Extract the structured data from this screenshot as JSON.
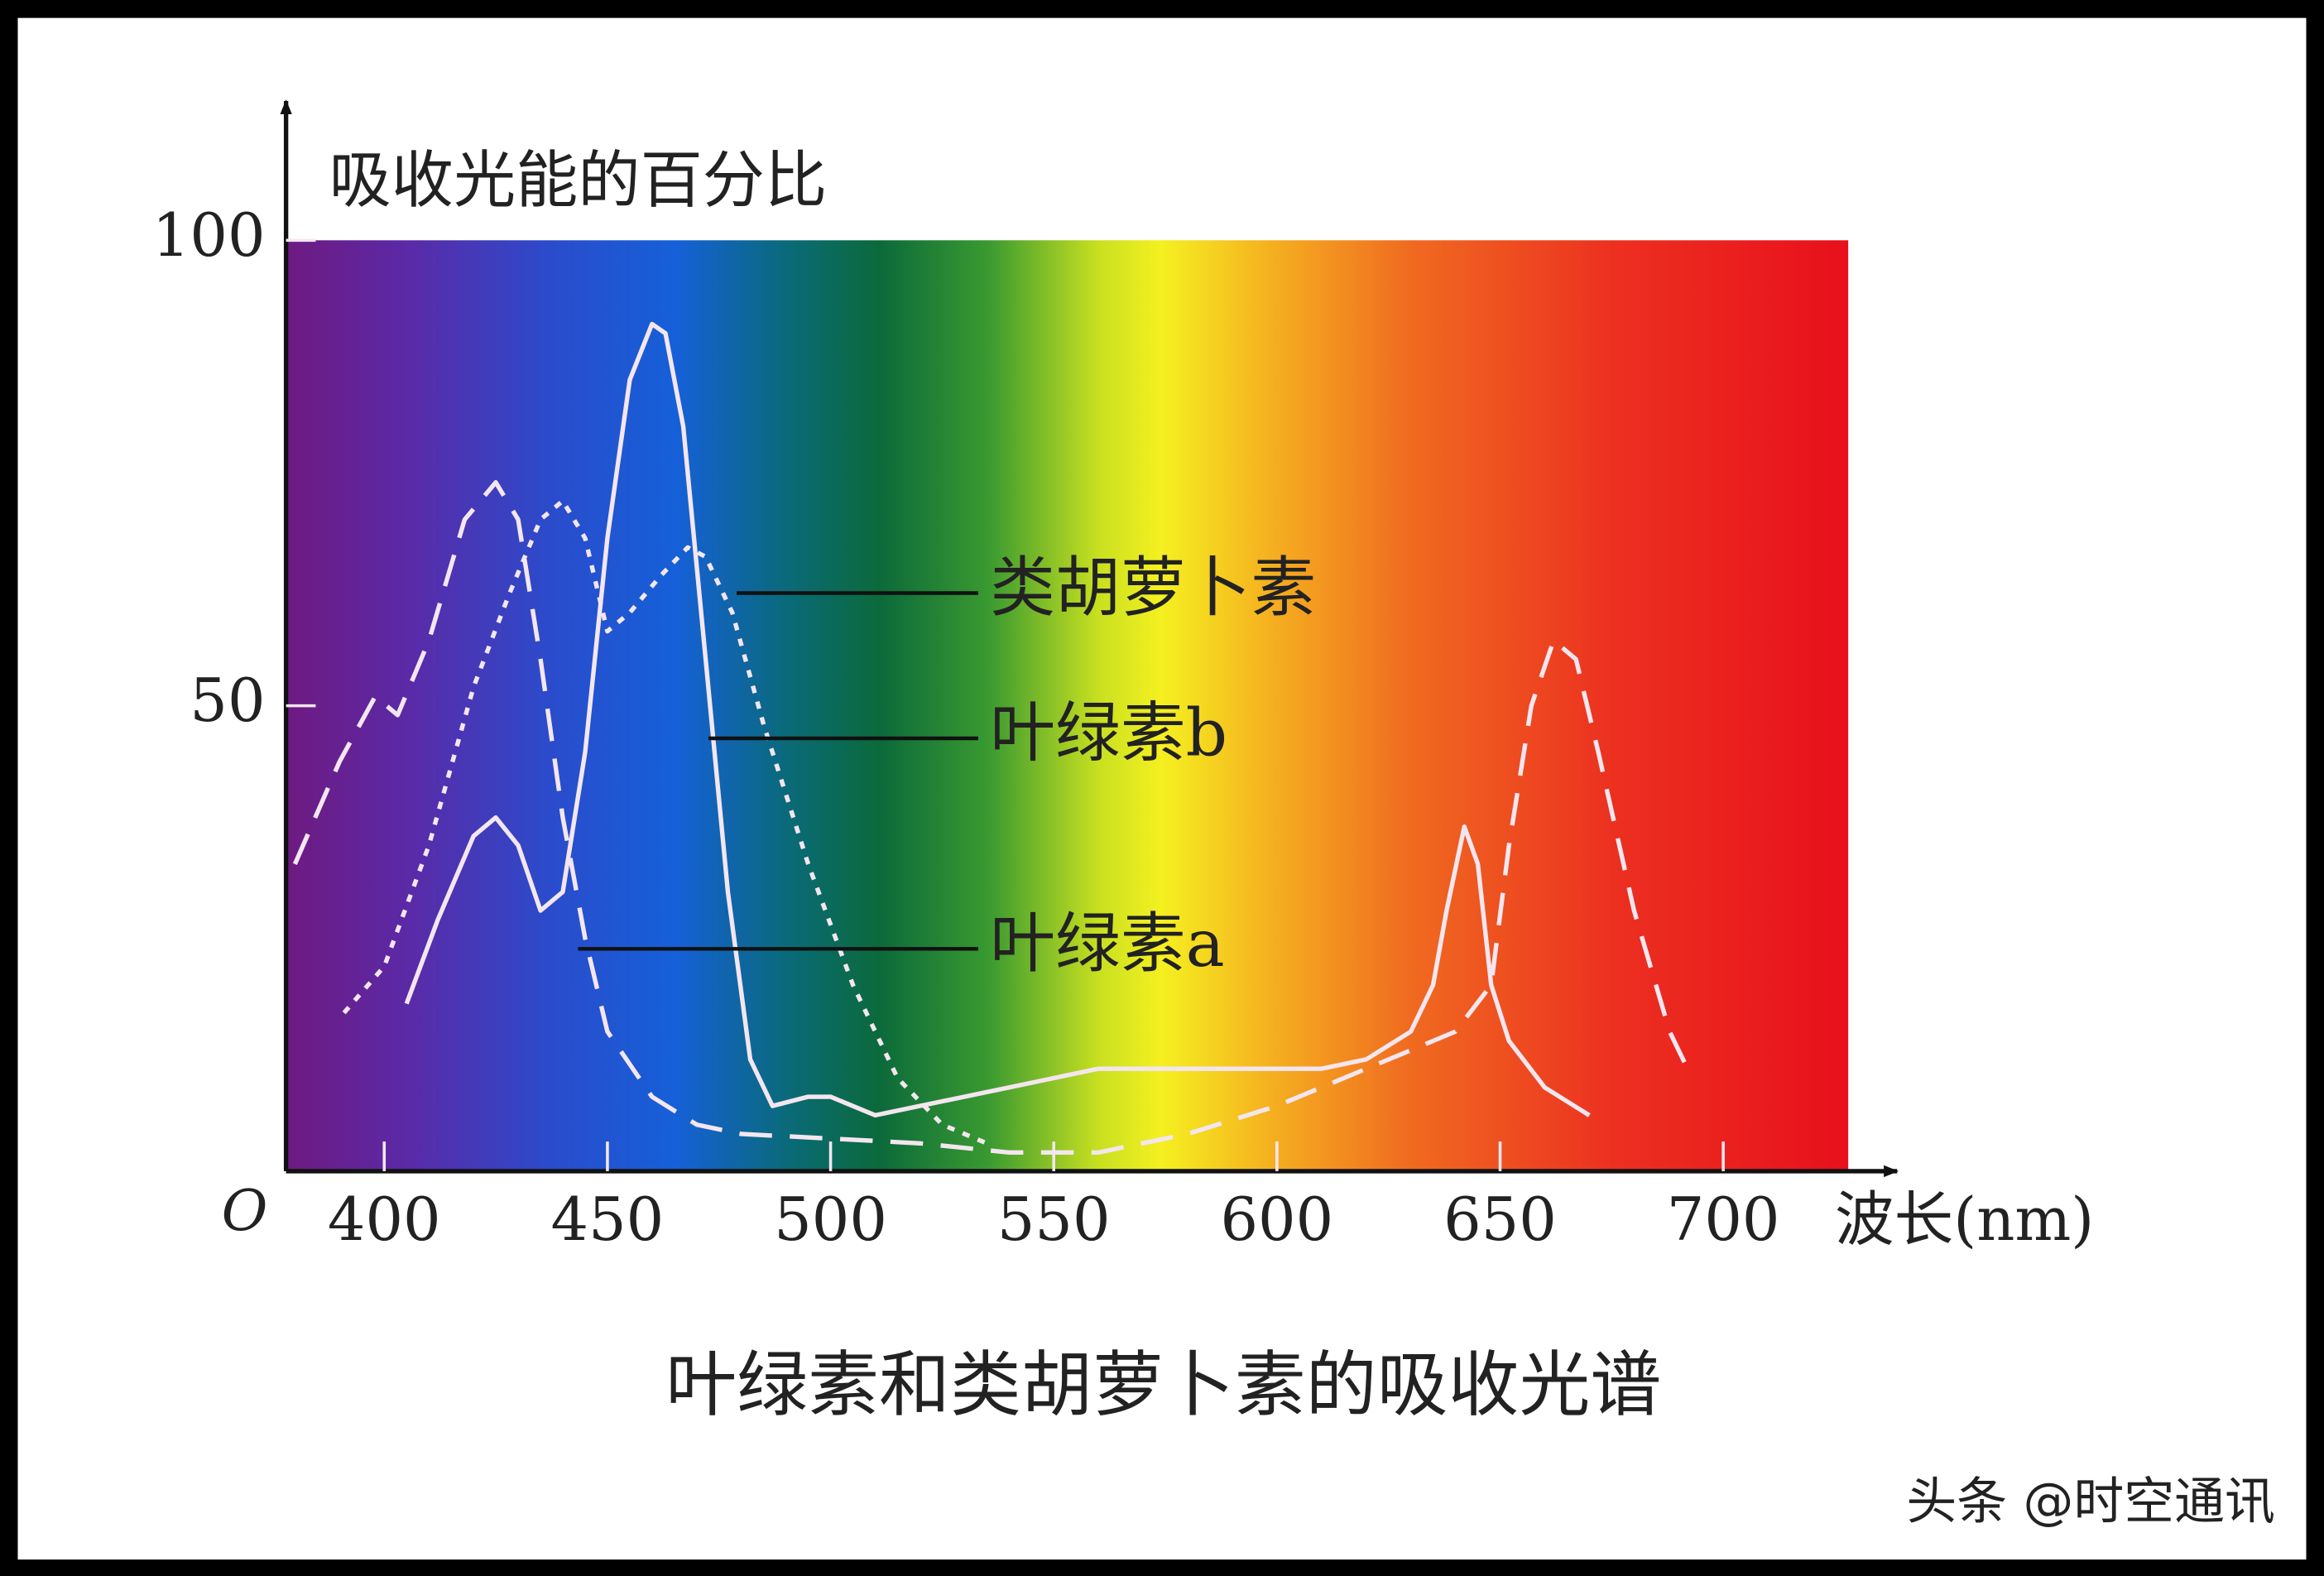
{
  "chart_data": {
    "type": "line",
    "title": "叶绿素和类胡萝卜素的吸收光谱",
    "y_label": "吸收光能的百分比",
    "x_label": "波长(nm)",
    "watermark": "头条 @时空通讯",
    "xlim": [
      378,
      728
    ],
    "ylim": [
      0,
      100
    ],
    "xticks": [
      400,
      450,
      500,
      550,
      600,
      650,
      700
    ],
    "yticks": [
      {
        "value": 0,
        "label": "O"
      },
      50,
      100
    ],
    "series": [
      {
        "name": "类胡萝卜素",
        "color": "#f4e6ef",
        "line_style": "dotted",
        "x": [
          391,
          400,
          410,
          420,
          428,
          435,
          440,
          445,
          450,
          455,
          462,
          468,
          472,
          478,
          485,
          495,
          505,
          515,
          525,
          535
        ],
        "values": [
          17,
          22,
          35,
          52,
          62,
          70,
          72,
          68,
          58,
          60,
          64,
          67,
          66,
          60,
          48,
          33,
          20,
          10,
          5,
          3
        ]
      },
      {
        "name": "叶绿素b",
        "color": "#f4e6ef",
        "line_style": "solid",
        "x": [
          405,
          412,
          420,
          425,
          430,
          435,
          440,
          445,
          450,
          455,
          460,
          463,
          467,
          472,
          477,
          482,
          487,
          495,
          500,
          510,
          520,
          540,
          560,
          580,
          600,
          610,
          620,
          630,
          635,
          638,
          642,
          645,
          648,
          652,
          660,
          670
        ],
        "values": [
          18,
          27,
          36,
          38,
          35,
          28,
          30,
          45,
          68,
          85,
          91,
          90,
          80,
          55,
          30,
          12,
          7,
          8,
          8,
          6,
          7,
          9,
          11,
          11,
          11,
          11,
          12,
          15,
          20,
          28,
          37,
          33,
          20,
          14,
          9,
          6
        ]
      },
      {
        "name": "叶绿素a",
        "color": "#f4e6ef",
        "line_style": "dashed",
        "x": [
          380,
          390,
          398,
          403,
          410,
          418,
          425,
          430,
          435,
          440,
          445,
          450,
          460,
          470,
          480,
          500,
          520,
          540,
          560,
          580,
          600,
          620,
          630,
          640,
          648,
          652,
          657,
          662,
          667,
          672,
          680,
          688,
          693
        ],
        "values": [
          33,
          44,
          51,
          49,
          57,
          70,
          74,
          70,
          55,
          38,
          25,
          15,
          8,
          5,
          4,
          3.5,
          3,
          2,
          2,
          4,
          7,
          11,
          13,
          15,
          20,
          35,
          50,
          57,
          55,
          45,
          28,
          15,
          10
        ]
      }
    ]
  }
}
